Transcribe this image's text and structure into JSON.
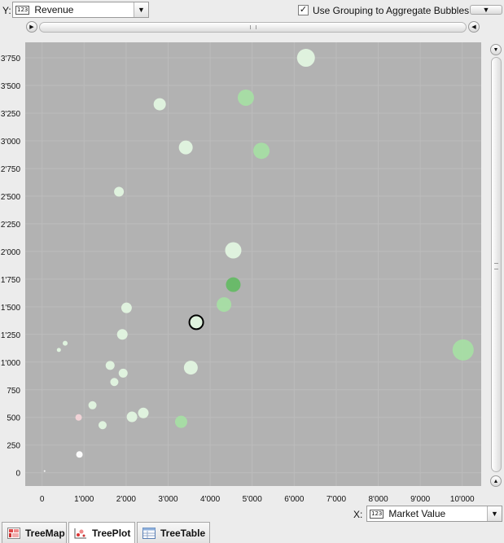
{
  "controls": {
    "y_label": "Y:",
    "y_type_badge": "123",
    "y_value": "Revenue",
    "grouping_label": "Use Grouping to Aggregate Bubbles",
    "grouping_checked": true,
    "x_label": "X:",
    "x_type_badge": "123",
    "x_value": "Market Value"
  },
  "tabs": [
    {
      "label": "TreeMap",
      "icon": "treemap-icon",
      "active": false
    },
    {
      "label": "TreePlot",
      "icon": "treeplot-icon",
      "active": true
    },
    {
      "label": "TreeTable",
      "icon": "treetable-icon",
      "active": false
    }
  ],
  "icons": {
    "checkmark": "✓",
    "dropdown": "▼",
    "scroll_left": "◀",
    "scroll_right": "▶",
    "scroll_up": "▲",
    "scroll_down": "▼"
  },
  "colors": {
    "plot_background": "#b2b2b2",
    "gridline": "#bcbcbc",
    "bubble_light": "#e2f6e0",
    "bubble_mid": "#a6dea4",
    "bubble_dark": "#66bb66",
    "bubble_pink": "#f3d4d8",
    "bubble_white": "#ffffff"
  },
  "chart_data": {
    "type": "scatter",
    "xlabel": "Market Value",
    "ylabel": "Revenue",
    "xlim": [
      -400,
      10450
    ],
    "ylim": [
      -120,
      3890
    ],
    "x_ticks": [
      0,
      1000,
      2000,
      3000,
      4000,
      5000,
      6000,
      7000,
      8000,
      9000,
      10000
    ],
    "x_tick_labels": [
      "0",
      "1'000",
      "2'000",
      "3'000",
      "4'000",
      "5'000",
      "6'000",
      "7'000",
      "8'000",
      "9'000",
      "10'000"
    ],
    "y_ticks": [
      0,
      250,
      500,
      750,
      1000,
      1250,
      1500,
      1750,
      2000,
      2250,
      2500,
      2750,
      3000,
      3250,
      3500,
      3750
    ],
    "y_tick_labels": [
      "0",
      "250",
      "500",
      "750",
      "1'000",
      "1'250",
      "1'500",
      "1'750",
      "2'000",
      "2'250",
      "2'500",
      "2'750",
      "3'000",
      "3'250",
      "3'500",
      "3'750"
    ],
    "grid": true,
    "points": [
      {
        "x": 6280,
        "y": 3750,
        "size": 11,
        "color": "light"
      },
      {
        "x": 4850,
        "y": 3390,
        "size": 10,
        "color": "mid"
      },
      {
        "x": 2800,
        "y": 3330,
        "size": 7.5,
        "color": "light"
      },
      {
        "x": 3420,
        "y": 2940,
        "size": 8.5,
        "color": "light"
      },
      {
        "x": 5220,
        "y": 2910,
        "size": 10,
        "color": "mid"
      },
      {
        "x": 1830,
        "y": 2540,
        "size": 6,
        "color": "light"
      },
      {
        "x": 4550,
        "y": 2010,
        "size": 10,
        "color": "light"
      },
      {
        "x": 4550,
        "y": 1700,
        "size": 9,
        "color": "dark"
      },
      {
        "x": 4330,
        "y": 1520,
        "size": 9,
        "color": "mid"
      },
      {
        "x": 2010,
        "y": 1490,
        "size": 6.5,
        "color": "light"
      },
      {
        "x": 3670,
        "y": 1360,
        "size": 8.5,
        "color": "light",
        "selected": true
      },
      {
        "x": 1910,
        "y": 1250,
        "size": 6.5,
        "color": "light"
      },
      {
        "x": 10020,
        "y": 1110,
        "size": 13,
        "color": "mid"
      },
      {
        "x": 3540,
        "y": 950,
        "size": 8.5,
        "color": "light"
      },
      {
        "x": 1620,
        "y": 970,
        "size": 5.5,
        "color": "light"
      },
      {
        "x": 1930,
        "y": 900,
        "size": 5.5,
        "color": "light"
      },
      {
        "x": 1720,
        "y": 820,
        "size": 5,
        "color": "light"
      },
      {
        "x": 1200,
        "y": 610,
        "size": 5,
        "color": "light"
      },
      {
        "x": 2410,
        "y": 540,
        "size": 6.5,
        "color": "light"
      },
      {
        "x": 2140,
        "y": 505,
        "size": 6.5,
        "color": "light"
      },
      {
        "x": 3310,
        "y": 460,
        "size": 7.5,
        "color": "mid"
      },
      {
        "x": 1440,
        "y": 430,
        "size": 5,
        "color": "light"
      },
      {
        "x": 870,
        "y": 500,
        "size": 4,
        "color": "pink"
      },
      {
        "x": 890,
        "y": 165,
        "size": 4,
        "color": "white"
      },
      {
        "x": 550,
        "y": 1170,
        "size": 3,
        "color": "light"
      },
      {
        "x": 400,
        "y": 1110,
        "size": 2.5,
        "color": "light"
      },
      {
        "x": 60,
        "y": 15,
        "size": 1,
        "color": "white"
      }
    ]
  }
}
